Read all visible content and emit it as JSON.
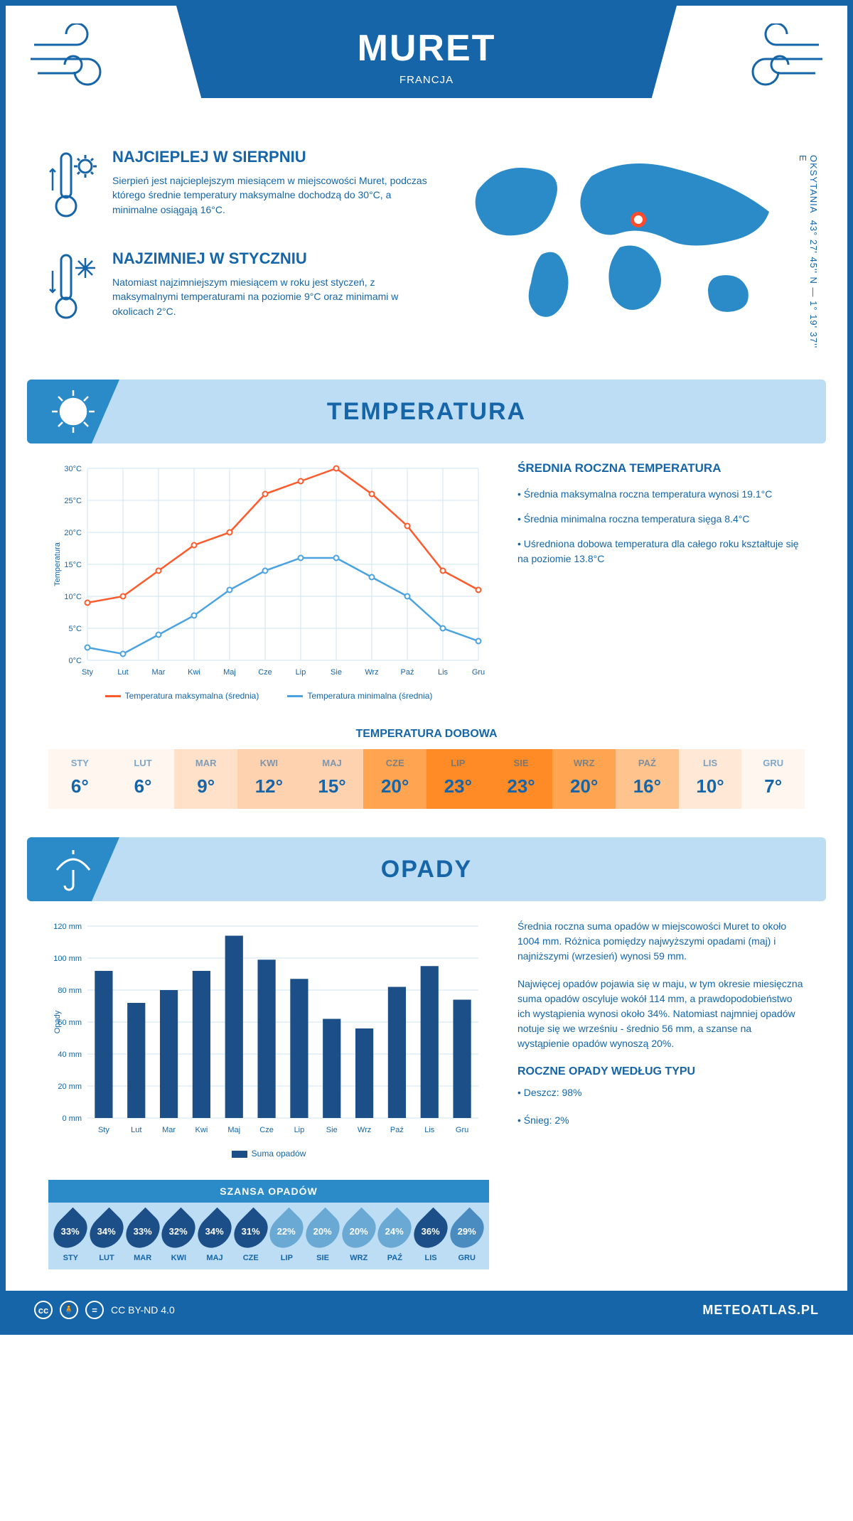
{
  "header": {
    "city": "MURET",
    "country": "FRANCJA"
  },
  "coords": {
    "text": "43° 27' 45'' N — 1° 19' 37'' E",
    "region": "OKSYTANIA"
  },
  "facts": {
    "hot": {
      "title": "NAJCIEPLEJ W SIERPNIU",
      "text": "Sierpień jest najcieplejszym miesiącem w miejscowości Muret, podczas którego średnie temperatury maksymalne dochodzą do 30°C, a minimalne osiągają 16°C."
    },
    "cold": {
      "title": "NAJZIMNIEJ W STYCZNIU",
      "text": "Natomiast najzimniejszym miesiącem w roku jest styczeń, z maksymalnymi temperaturami na poziomie 9°C oraz minimami w okolicach 2°C."
    }
  },
  "sections": {
    "temp": "TEMPERATURA",
    "precip": "OPADY"
  },
  "months": [
    "Sty",
    "Lut",
    "Mar",
    "Kwi",
    "Maj",
    "Cze",
    "Lip",
    "Sie",
    "Wrz",
    "Paź",
    "Lis",
    "Gru"
  ],
  "months_upper": [
    "STY",
    "LUT",
    "MAR",
    "KWI",
    "MAJ",
    "CZE",
    "LIP",
    "SIE",
    "WRZ",
    "PAŹ",
    "LIS",
    "GRU"
  ],
  "temp_chart": {
    "type": "line",
    "ylabel": "Temperatura",
    "ylim": [
      0,
      30
    ],
    "ytick_step": 5,
    "ytick_suffix": "°C",
    "grid_color": "#cfe3f2",
    "background_color": "#ffffff",
    "series": [
      {
        "name": "Temperatura maksymalna (średnia)",
        "color": "#ff5a2b",
        "values": [
          9,
          10,
          14,
          18,
          20,
          26,
          28,
          30,
          26,
          21,
          14,
          11
        ]
      },
      {
        "name": "Temperatura minimalna (średnia)",
        "color": "#4aa3e0",
        "values": [
          2,
          1,
          4,
          7,
          11,
          14,
          16,
          16,
          13,
          10,
          5,
          3
        ]
      }
    ],
    "legend_max": "Temperatura maksymalna (średnia)",
    "legend_min": "Temperatura minimalna (średnia)"
  },
  "temp_side": {
    "heading": "ŚREDNIA ROCZNA TEMPERATURA",
    "bullets": [
      "• Średnia maksymalna roczna temperatura wynosi 19.1°C",
      "• Średnia minimalna roczna temperatura sięga 8.4°C",
      "• Uśredniona dobowa temperatura dla całego roku kształtuje się na poziomie 13.8°C"
    ]
  },
  "daily": {
    "title": "TEMPERATURA DOBOWA",
    "values": [
      "6°",
      "6°",
      "9°",
      "12°",
      "15°",
      "20°",
      "23°",
      "23°",
      "20°",
      "16°",
      "10°",
      "7°"
    ],
    "colors": [
      "#fff6ef",
      "#fff6ef",
      "#ffe1c9",
      "#ffd2af",
      "#ffd2af",
      "#ffa551",
      "#ff8b26",
      "#ff8b26",
      "#ffa551",
      "#ffc38e",
      "#ffe8d6",
      "#fff6ef"
    ]
  },
  "precip_chart": {
    "type": "bar",
    "ylabel": "Opady",
    "ylim": [
      0,
      120
    ],
    "ytick_step": 20,
    "ytick_suffix": " mm",
    "bar_color": "#1c4f87",
    "background_color": "#ffffff",
    "grid_color": "#cfe3f2",
    "values": [
      92,
      72,
      80,
      92,
      114,
      99,
      87,
      62,
      56,
      82,
      95,
      74
    ],
    "legend": "Suma opadów"
  },
  "precip_side": {
    "p1": "Średnia roczna suma opadów w miejscowości Muret to około 1004 mm. Różnica pomiędzy najwyższymi opadami (maj) i najniższymi (wrzesień) wynosi 59 mm.",
    "p2": "Najwięcej opadów pojawia się w maju, w tym okresie miesięczna suma opadów oscyluje wokół 114 mm, a prawdopodobieństwo ich wystąpienia wynosi około 34%. Natomiast najmniej opadów notuje się we wrześniu - średnio 56 mm, a szanse na wystąpienie opadów wynoszą 20%.",
    "type_heading": "ROCZNE OPADY WEDŁUG TYPU",
    "type_bullets": [
      "• Deszcz: 98%",
      "• Śnieg: 2%"
    ]
  },
  "chance": {
    "title": "SZANSA OPADÓW",
    "values": [
      "33%",
      "34%",
      "33%",
      "32%",
      "34%",
      "31%",
      "22%",
      "20%",
      "20%",
      "24%",
      "36%",
      "29%"
    ],
    "drop_colors": [
      "#1c4f87",
      "#1c4f87",
      "#1c4f87",
      "#1c4f87",
      "#1c4f87",
      "#1c4f87",
      "#6aa9d4",
      "#6aa9d4",
      "#6aa9d4",
      "#6aa9d4",
      "#1c4f87",
      "#4a8bc0"
    ]
  },
  "footer": {
    "license": "CC BY-ND 4.0",
    "site": "METEOATLAS.PL"
  },
  "colors": {
    "brand": "#1565a8",
    "band": "#bdddf4",
    "corner": "#2a8bc8"
  }
}
